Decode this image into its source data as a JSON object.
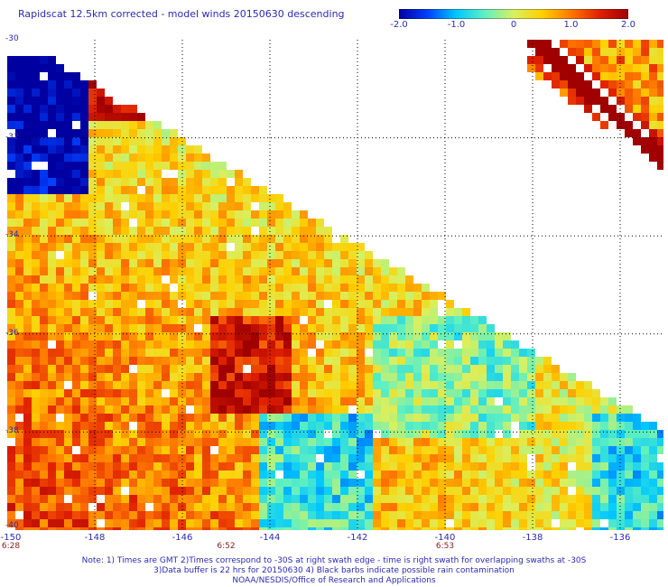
{
  "title": "Rapidscat 12.5km corrected - model winds 20150630 descending",
  "colorbar": {
    "ticks": [
      "-2.0",
      "-1.0",
      "0",
      "1.0",
      "2.0"
    ],
    "tick_values": [
      -2.0,
      -1.0,
      0,
      1.0,
      2.0
    ],
    "colors": [
      "#0000a0",
      "#0040ff",
      "#00c8ff",
      "#60f0c0",
      "#d8f060",
      "#ffd000",
      "#ff7800",
      "#e02000",
      "#a00000"
    ]
  },
  "map": {
    "lon_ticks": [
      "-150",
      "-148",
      "-146",
      "-144",
      "-142",
      "-140",
      "-138",
      "-136"
    ],
    "lon_values": [
      -150,
      -148,
      -146,
      -144,
      -142,
      -140,
      -138,
      -136
    ],
    "lon_range": [
      -150,
      -135
    ],
    "lat_ticks": [
      "-30",
      "-32",
      "-34",
      "-36",
      "-38",
      "-40"
    ],
    "lat_values": [
      -30,
      -32,
      -34,
      -36,
      -38,
      -40
    ],
    "lat_range": [
      -30,
      -40
    ],
    "grid": "dotted",
    "time_labels": [
      {
        "text": "6:28",
        "lon": -150
      },
      {
        "text": "6:52",
        "lon": -145
      },
      {
        "text": "6:53",
        "lon": -140
      }
    ]
  },
  "notes": [
    "Note: 1) Times are GMT 2)Times correspond to -30S at right swath edge - time is right swath for overlapping swaths at -30S",
    "3)Data buffer is 22 hrs for 20150630 4) Black barbs indicate possible rain contamination",
    "NOAA/NESDIS/Office of Research and Applications"
  ]
}
